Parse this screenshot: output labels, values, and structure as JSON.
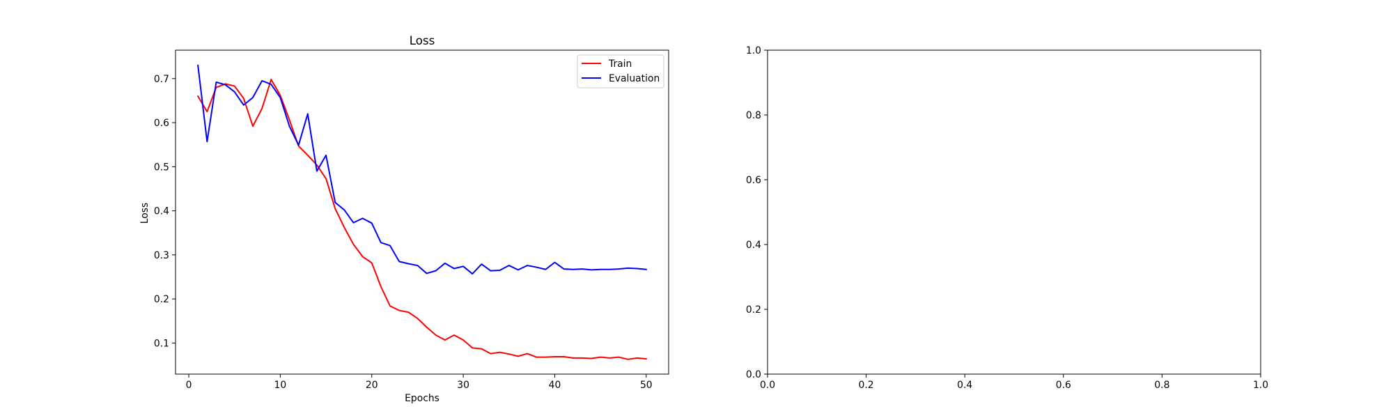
{
  "chart_data": [
    {
      "type": "line",
      "title": "Loss",
      "xlabel": "Epochs",
      "ylabel": "Loss",
      "xlim": [
        -1.45,
        52.45
      ],
      "ylim": [
        0.0295,
        0.7645
      ],
      "xticks": [
        0,
        10,
        20,
        30,
        40,
        50
      ],
      "xtick_labels": [
        "0",
        "10",
        "20",
        "30",
        "40",
        "50"
      ],
      "yticks": [
        0.1,
        0.2,
        0.3,
        0.4,
        0.5,
        0.6,
        0.7
      ],
      "ytick_labels": [
        "0.1",
        "0.2",
        "0.3",
        "0.4",
        "0.5",
        "0.6",
        "0.7"
      ],
      "grid": false,
      "legend_position": "top-right",
      "x": [
        1,
        2,
        3,
        4,
        5,
        6,
        7,
        8,
        9,
        10,
        11,
        12,
        13,
        14,
        15,
        16,
        17,
        18,
        19,
        20,
        21,
        22,
        23,
        24,
        25,
        26,
        27,
        28,
        29,
        30,
        31,
        32,
        33,
        34,
        35,
        36,
        37,
        38,
        39,
        40,
        41,
        42,
        43,
        44,
        45,
        46,
        47,
        48,
        49,
        50
      ],
      "series": [
        {
          "name": "Train",
          "color": "#ff0000",
          "values": [
            0.66,
            0.625,
            0.68,
            0.688,
            0.683,
            0.655,
            0.592,
            0.632,
            0.698,
            0.662,
            0.606,
            0.547,
            0.526,
            0.504,
            0.473,
            0.405,
            0.362,
            0.324,
            0.296,
            0.282,
            0.228,
            0.184,
            0.174,
            0.17,
            0.156,
            0.136,
            0.118,
            0.107,
            0.118,
            0.107,
            0.089,
            0.087,
            0.076,
            0.079,
            0.075,
            0.07,
            0.076,
            0.068,
            0.068,
            0.069,
            0.069,
            0.066,
            0.066,
            0.065,
            0.068,
            0.066,
            0.068,
            0.063,
            0.066,
            0.064
          ]
        },
        {
          "name": "Evaluation",
          "color": "#0000ff",
          "values": [
            0.73,
            0.557,
            0.692,
            0.686,
            0.67,
            0.64,
            0.657,
            0.695,
            0.687,
            0.657,
            0.592,
            0.549,
            0.62,
            0.49,
            0.526,
            0.419,
            0.402,
            0.373,
            0.383,
            0.372,
            0.328,
            0.321,
            0.285,
            0.28,
            0.276,
            0.258,
            0.264,
            0.281,
            0.269,
            0.274,
            0.257,
            0.279,
            0.264,
            0.265,
            0.276,
            0.266,
            0.276,
            0.272,
            0.267,
            0.283,
            0.268,
            0.267,
            0.268,
            0.266,
            0.267,
            0.267,
            0.268,
            0.27,
            0.269,
            0.267
          ]
        }
      ]
    },
    {
      "type": "line",
      "title": "",
      "xlabel": "",
      "ylabel": "",
      "xlim": [
        0,
        1
      ],
      "ylim": [
        0,
        1
      ],
      "xticks": [
        0,
        0.2,
        0.4,
        0.6,
        0.8,
        1.0
      ],
      "xtick_labels": [
        "0.0",
        "0.2",
        "0.4",
        "0.6",
        "0.8",
        "1.0"
      ],
      "yticks": [
        0,
        0.2,
        0.4,
        0.6,
        0.8,
        1.0
      ],
      "ytick_labels": [
        "0.0",
        "0.2",
        "0.4",
        "0.6",
        "0.8",
        "1.0"
      ],
      "grid": false,
      "series": []
    }
  ]
}
